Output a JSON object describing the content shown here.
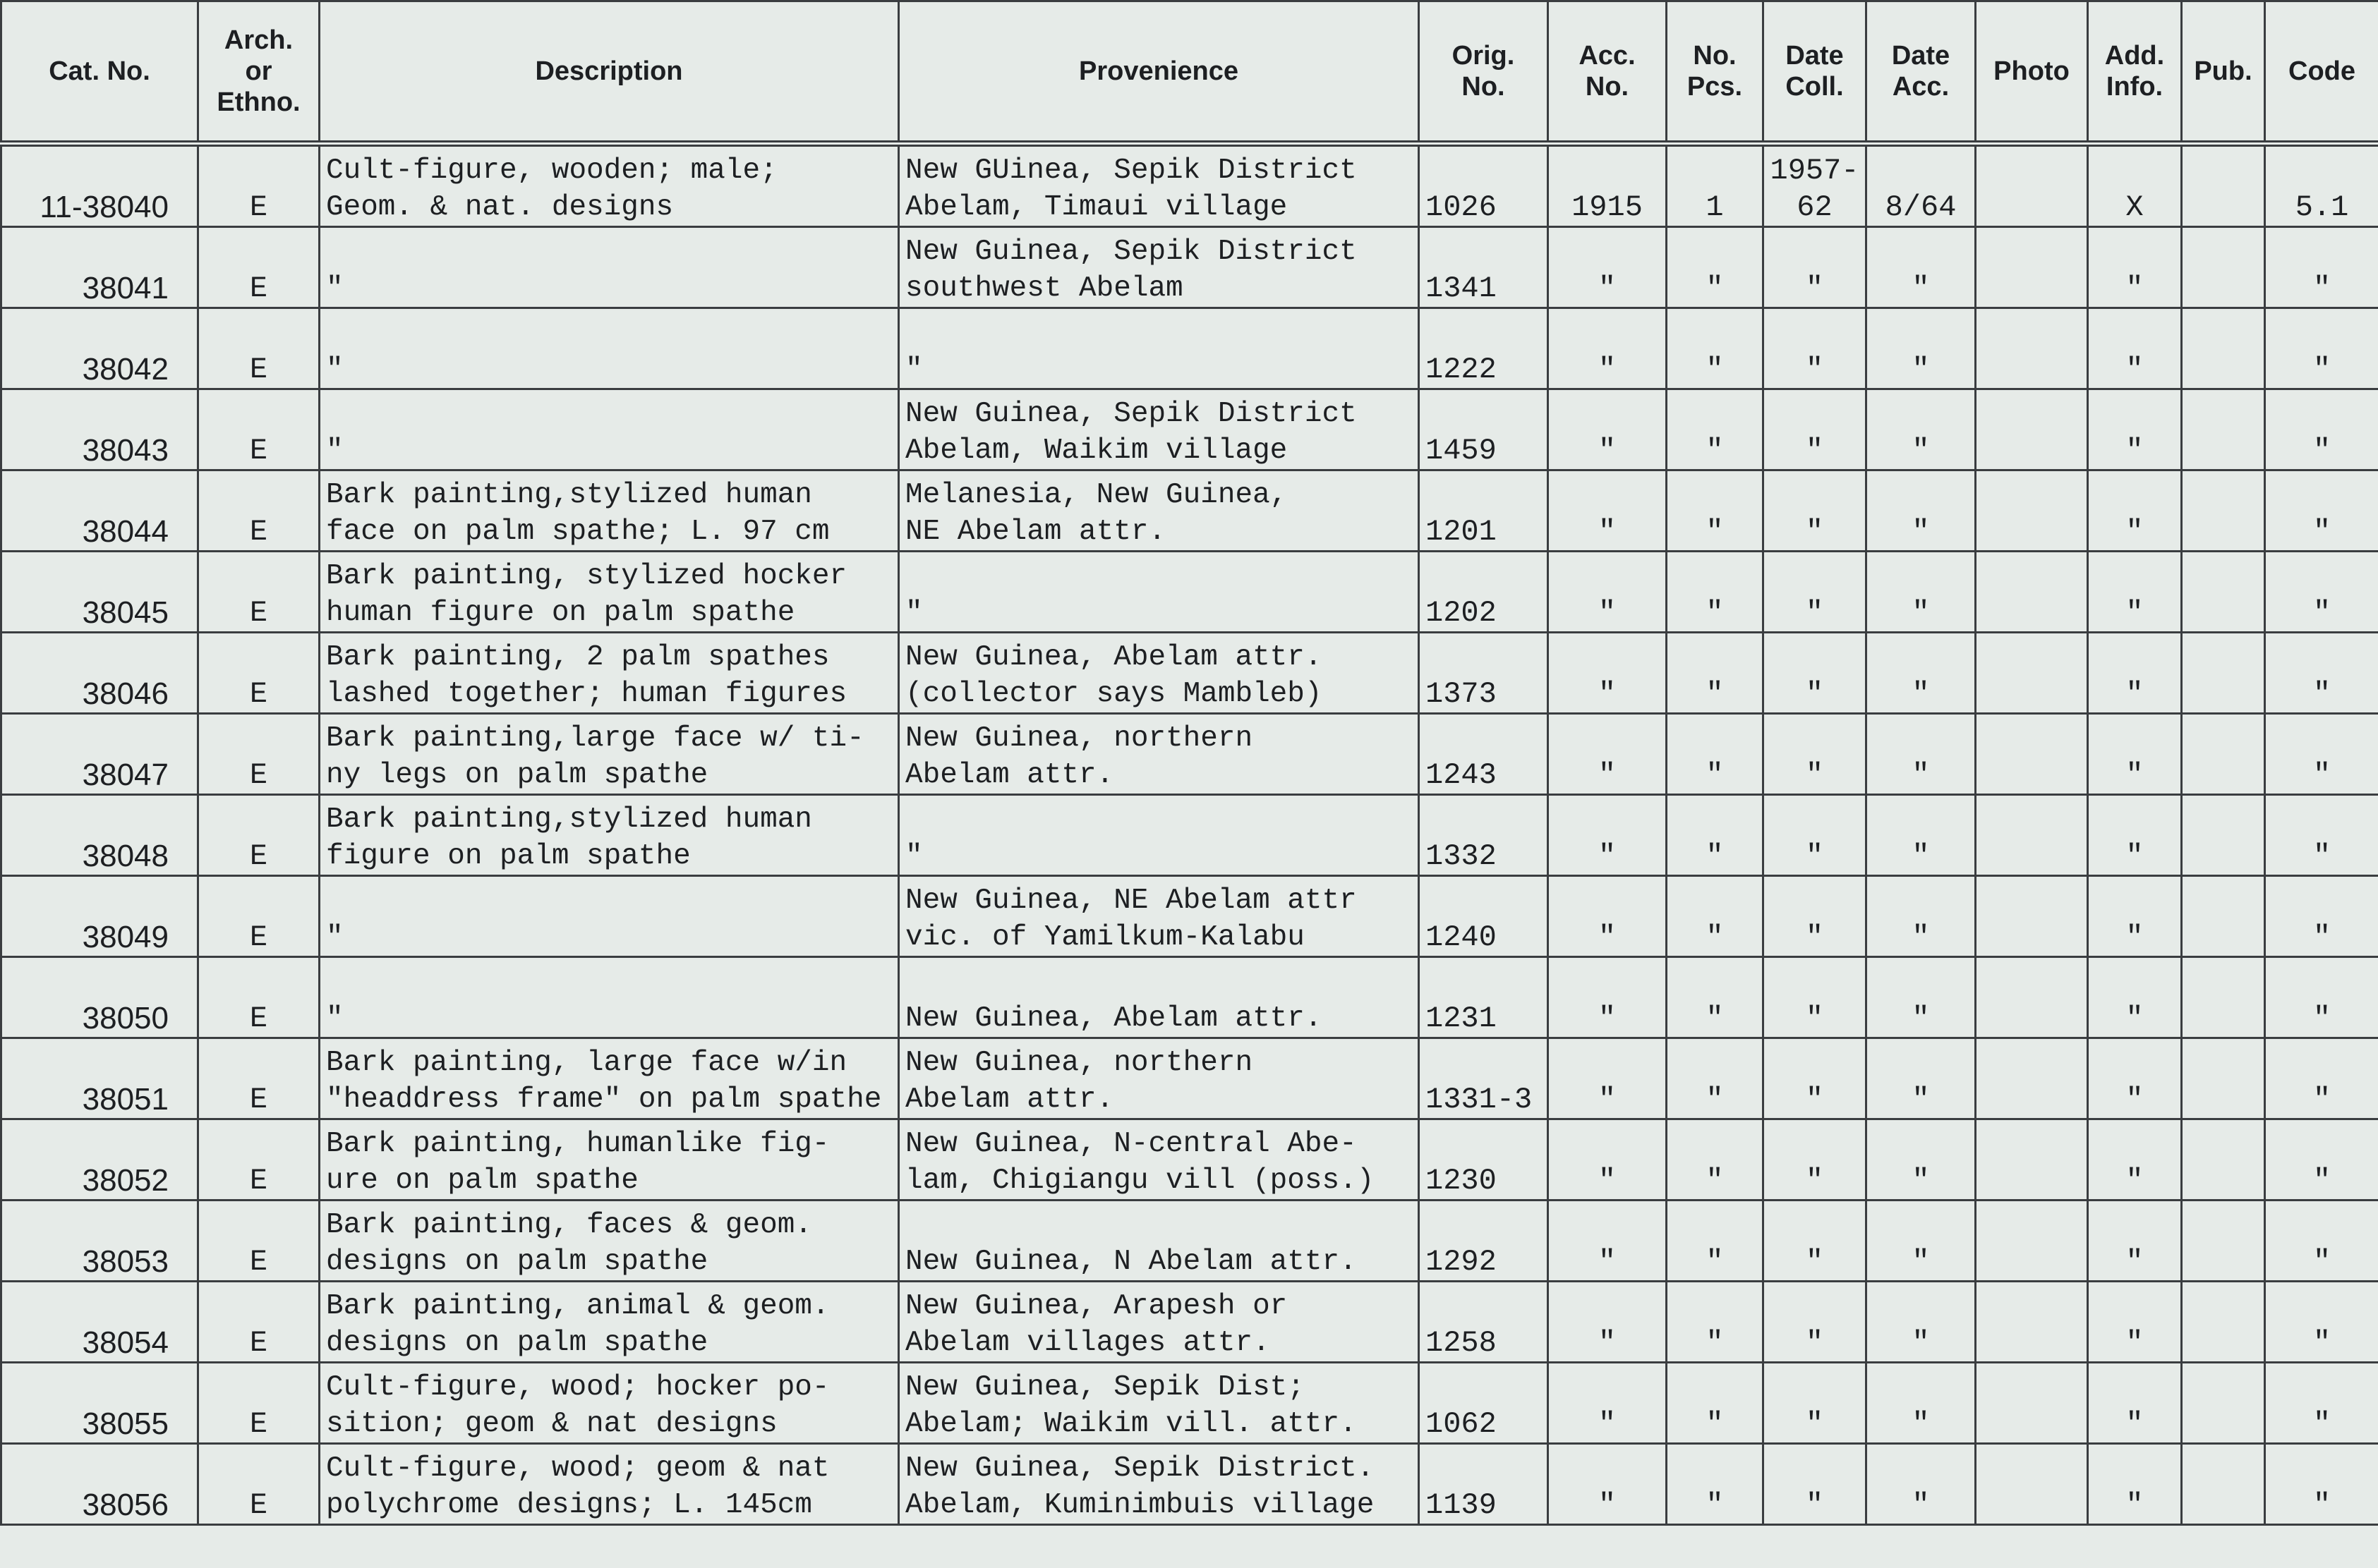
{
  "table": {
    "header": [
      "Cat. No.",
      "Arch.\nor\nEthno.",
      "Description",
      "Provenience",
      "Orig.\nNo.",
      "Acc.\nNo.",
      "No.\nPcs.",
      "Date\nColl.",
      "Date\nAcc.",
      "Photo",
      "Add.\nInfo.",
      "Pub.",
      "Code"
    ],
    "rows": [
      [
        "11-38040",
        "E",
        "Cult-figure, wooden; male;\nGeom. & nat. designs",
        "New GUinea, Sepik District\nAbelam, Timaui village",
        "1026",
        "1915",
        "1",
        "1957-\n62",
        "8/64",
        null,
        "X",
        null,
        "5.1"
      ],
      [
        "38041",
        "E",
        "\"",
        "New Guinea, Sepik District\nsouthwest Abelam",
        "1341",
        "\"",
        "\"",
        "\"",
        "\"",
        null,
        "\"",
        null,
        "\""
      ],
      [
        "38042",
        "E",
        "\"",
        "\"",
        "1222",
        "\"",
        "\"",
        "\"",
        "\"",
        null,
        "\"",
        null,
        "\""
      ],
      [
        "38043",
        "E",
        "\"",
        "New Guinea, Sepik District\nAbelam, Waikim village",
        "1459",
        "\"",
        "\"",
        "\"",
        "\"",
        null,
        "\"",
        null,
        "\""
      ],
      [
        "38044",
        "E",
        "Bark painting,stylized human\nface on palm spathe; L.  97 cm",
        "Melanesia, New Guinea,\nNE Abelam attr.",
        "1201",
        "\"",
        "\"",
        "\"",
        "\"",
        null,
        "\"",
        null,
        "\""
      ],
      [
        "38045",
        "E",
        "Bark painting, stylized hocker\nhuman figure on palm spathe",
        "\"",
        "1202",
        "\"",
        "\"",
        "\"",
        "\"",
        null,
        "\"",
        null,
        "\""
      ],
      [
        "38046",
        "E",
        "Bark painting, 2 palm spathes\nlashed together; human figures",
        "New Guinea, Abelam attr.\n(collector says Mambleb)",
        "1373",
        "\"",
        "\"",
        "\"",
        "\"",
        null,
        "\"",
        null,
        "\""
      ],
      [
        "38047",
        "E",
        "Bark painting,large face w/ ti-\nny legs on palm spathe",
        "New Guinea, northern\nAbelam attr.",
        "1243",
        "\"",
        "\"",
        "\"",
        "\"",
        null,
        "\"",
        null,
        "\""
      ],
      [
        "38048",
        "E",
        "Bark painting,stylized human\nfigure on palm spathe",
        "\"",
        "1332",
        "\"",
        "\"",
        "\"",
        "\"",
        null,
        "\"",
        null,
        "\""
      ],
      [
        "38049",
        "E",
        "\"",
        "New Guinea, NE Abelam attr\nvic. of Yamilkum-Kalabu",
        "1240",
        "\"",
        "\"",
        "\"",
        "\"",
        null,
        "\"",
        null,
        "\""
      ],
      [
        "38050",
        "E",
        "\"",
        "New Guinea, Abelam attr.",
        "1231",
        "\"",
        "\"",
        "\"",
        "\"",
        null,
        "\"",
        null,
        "\""
      ],
      [
        "38051",
        "E",
        "Bark painting, large face w/in\n\"headdress frame\" on palm spathe",
        "New Guinea, northern\nAbelam attr.",
        "1331-3",
        "\"",
        "\"",
        "\"",
        "\"",
        null,
        "\"",
        null,
        "\""
      ],
      [
        "38052",
        "E",
        "Bark painting, humanlike fig-\nure on palm spathe",
        "New Guinea, N-central Abe-\nlam, Chigiangu vill (poss.)",
        "1230",
        "\"",
        "\"",
        "\"",
        "\"",
        null,
        "\"",
        null,
        "\""
      ],
      [
        "38053",
        "E",
        "Bark painting, faces & geom.\ndesigns on palm spathe",
        "New Guinea, N Abelam attr.",
        "1292",
        "\"",
        "\"",
        "\"",
        "\"",
        null,
        "\"",
        null,
        "\""
      ],
      [
        "38054",
        "E",
        "Bark painting, animal & geom.\ndesigns on palm spathe",
        "New Guinea, Arapesh or\nAbelam villages attr.",
        "1258",
        "\"",
        "\"",
        "\"",
        "\"",
        null,
        "\"",
        null,
        "\""
      ],
      [
        "38055",
        "E",
        "Cult-figure, wood; hocker po-\nsition; geom & nat designs",
        "New Guinea, Sepik Dist;\nAbelam; Waikim vill. attr.",
        "1062",
        "\"",
        "\"",
        "\"",
        "\"",
        null,
        "\"",
        null,
        "\""
      ],
      [
        "38056",
        "E",
        "Cult-figure, wood; geom & nat\npolychrome designs; L.  145cm",
        "New Guinea, Sepik District.\nAbelam, Kuminimbuis village",
        "1139",
        "\"",
        "\"",
        "\"",
        "\"",
        null,
        "\"",
        null,
        "\""
      ]
    ]
  }
}
